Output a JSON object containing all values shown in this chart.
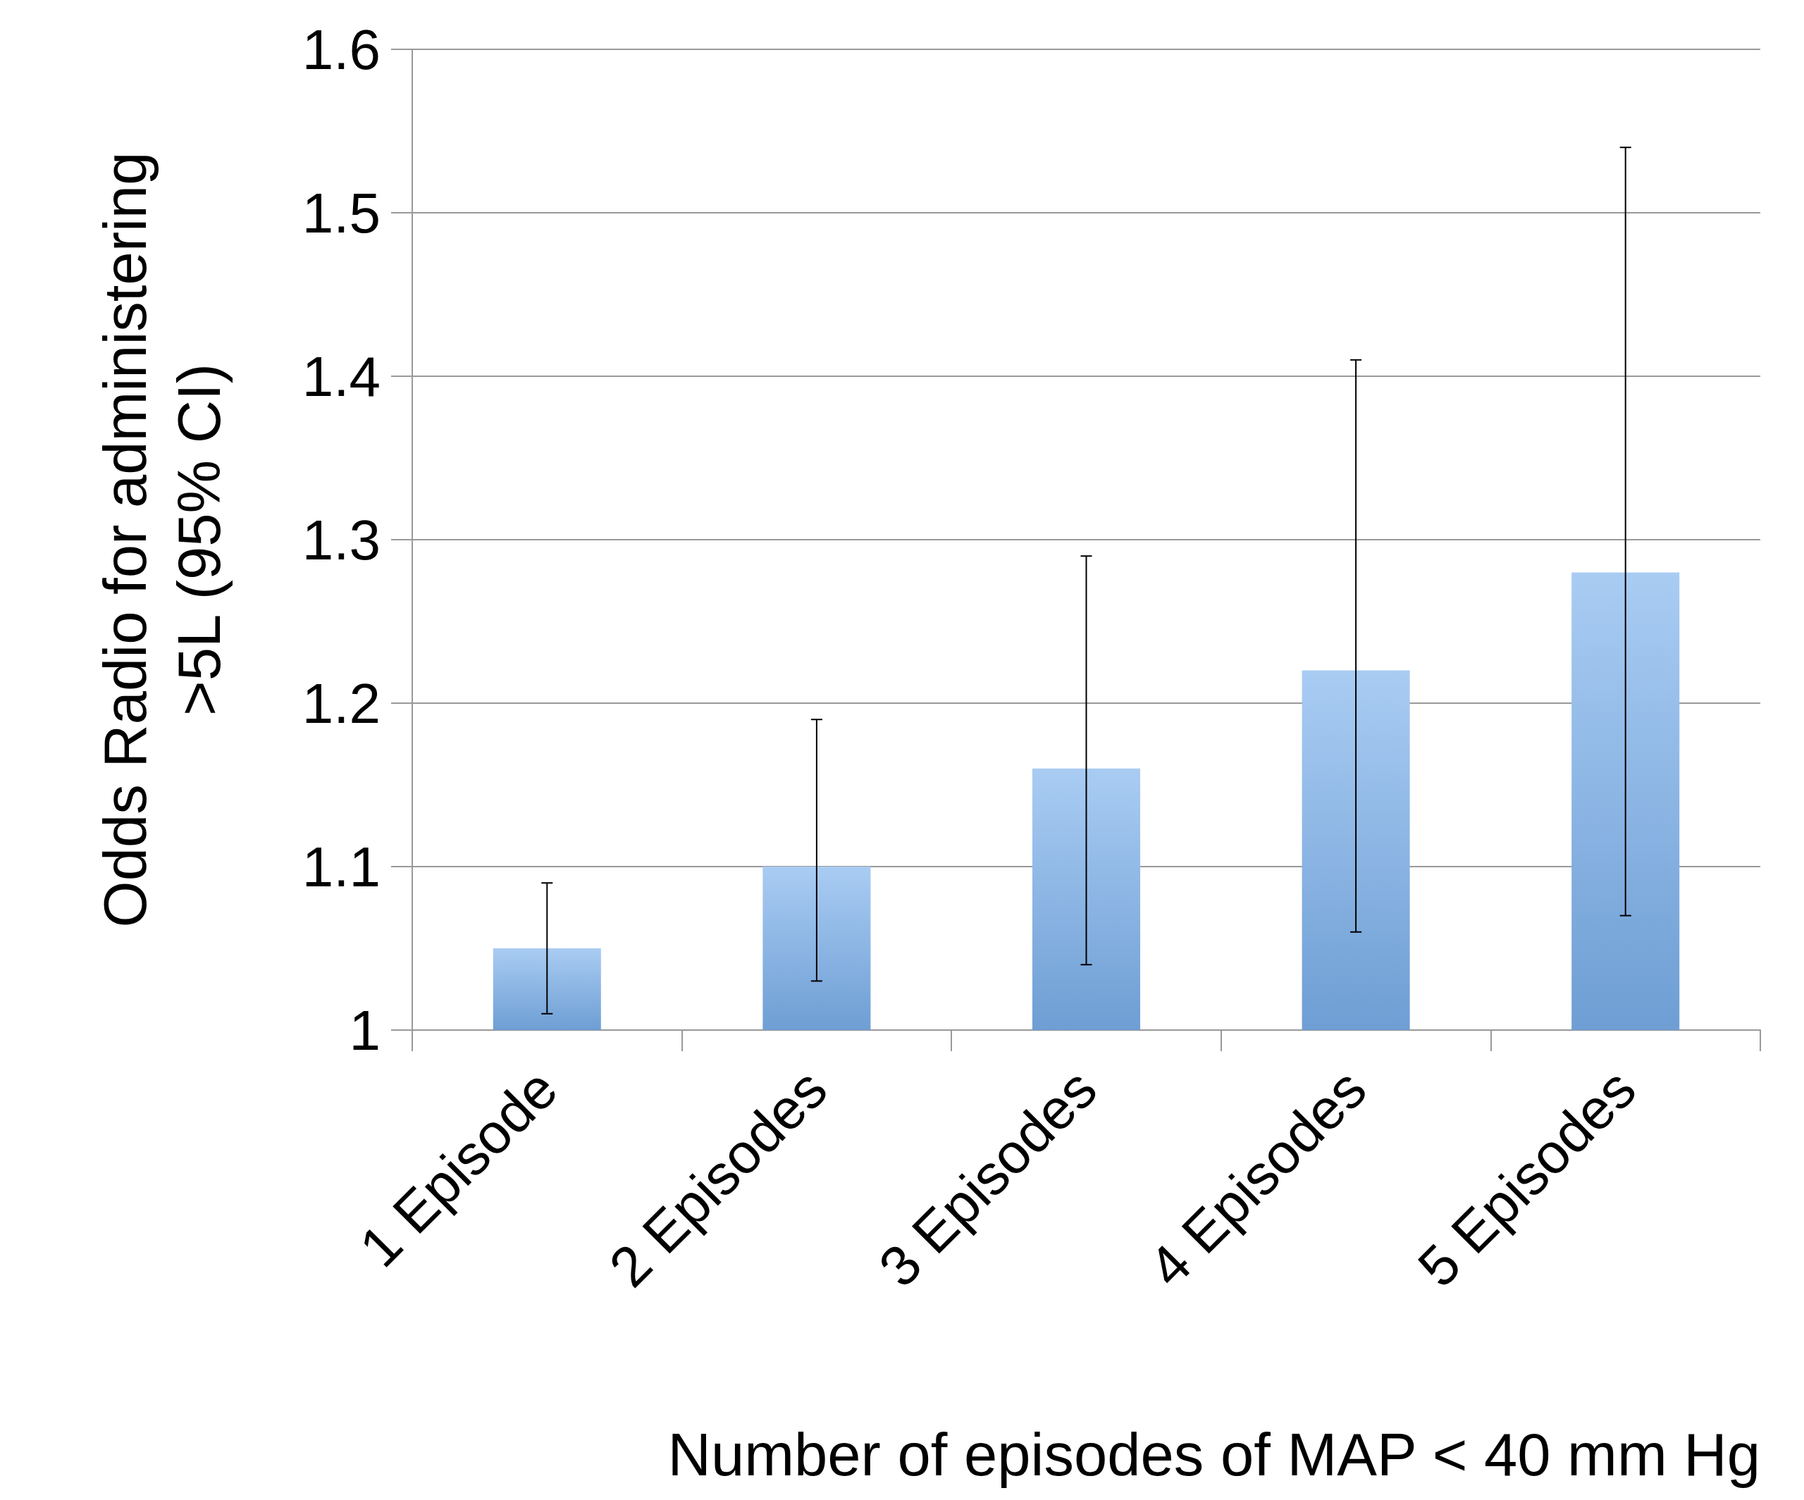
{
  "chart_data": {
    "type": "bar",
    "categories": [
      "1 Episode",
      "2 Episodes",
      "3 Episodes",
      "4 Episodes",
      "5 Episodes"
    ],
    "values": [
      1.05,
      1.1,
      1.16,
      1.22,
      1.28
    ],
    "errors": [
      [
        1.01,
        1.09
      ],
      [
        1.03,
        1.19
      ],
      [
        1.04,
        1.29
      ],
      [
        1.06,
        1.41
      ],
      [
        1.07,
        1.54
      ]
    ],
    "color": "#7ab0ec",
    "xlabel": "Number of episodes of MAP < 40 mm Hg",
    "ylabel": "Odds Radio for administering\n>5L (95% CI)",
    "ylim": [
      1,
      1.6
    ],
    "yticks": [
      1,
      1.1,
      1.2,
      1.3,
      1.4,
      1.5,
      1.6
    ],
    "grid": "y"
  }
}
